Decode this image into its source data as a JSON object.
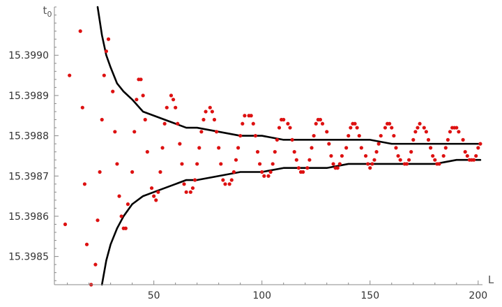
{
  "chart_data": {
    "type": "scatter",
    "title": "",
    "xlabel": "L",
    "ylabel": {
      "base": "t",
      "sub": "0"
    },
    "xlim": [
      4,
      202
    ],
    "ylim": [
      15.39843,
      15.39912
    ],
    "x_axis_at_y": 15.39843,
    "y_axis_at_x": 4,
    "x_ticks": [
      50,
      100,
      150,
      200
    ],
    "x_tick_labels": [
      "50",
      "100",
      "150",
      "200"
    ],
    "x_minor_step": 10,
    "y_ticks": [
      15.3985,
      15.3986,
      15.3987,
      15.3988,
      15.3989,
      15.399
    ],
    "y_tick_labels": [
      "15.3985",
      "15.3986",
      "15.3987",
      "15.3988",
      "15.3989",
      "15.3990"
    ],
    "y_minor_step": 2e-05,
    "grid": false,
    "colors": {
      "points": "#dd1111",
      "curves": "#000000",
      "axes": "#888888"
    },
    "series": [
      {
        "kind": "points",
        "x": [
          9,
          11,
          16,
          17,
          18,
          19,
          21,
          23,
          24,
          25,
          26,
          27,
          28,
          29,
          31,
          32,
          33,
          34,
          35,
          36,
          37,
          38,
          40,
          41,
          42,
          43,
          44,
          45,
          46,
          47,
          49,
          50,
          51,
          52,
          53,
          54,
          55,
          56,
          58,
          59,
          60,
          61,
          62,
          63,
          64,
          65,
          67,
          68,
          69,
          70,
          71,
          72,
          73,
          74,
          76,
          77,
          78,
          79,
          80,
          81,
          82,
          83,
          85,
          86,
          87,
          88,
          89,
          90,
          91,
          92,
          94,
          95,
          96,
          97,
          98,
          99,
          100,
          101,
          103,
          104,
          105,
          106,
          107,
          108,
          109,
          110,
          112,
          113,
          114,
          115,
          116,
          117,
          118,
          119,
          121,
          122,
          123,
          124,
          125,
          126,
          127,
          128,
          130,
          131,
          132,
          133,
          134,
          135,
          136,
          137,
          139,
          140,
          141,
          142,
          143,
          144,
          145,
          146,
          148,
          149,
          150,
          151,
          152,
          153,
          154,
          155,
          157,
          158,
          159,
          160,
          161,
          162,
          163,
          164,
          166,
          167,
          168,
          169,
          170,
          171,
          172,
          173,
          175,
          176,
          177,
          178,
          179,
          180,
          181,
          182,
          184,
          185,
          186,
          187,
          188,
          189,
          190,
          191,
          193,
          194,
          195,
          196,
          197,
          198,
          199,
          200,
          201
        ],
        "y": [
          15.39858,
          15.39895,
          15.39906,
          15.39887,
          15.39868,
          15.39853,
          15.39843,
          15.39848,
          15.39859,
          15.39871,
          15.39884,
          15.39895,
          15.39901,
          15.39904,
          15.39891,
          15.39881,
          15.39873,
          15.39865,
          15.3986,
          15.39857,
          15.39857,
          15.39863,
          15.39871,
          15.39881,
          15.39889,
          15.39894,
          15.39894,
          15.3989,
          15.39884,
          15.39876,
          15.39867,
          15.39865,
          15.39864,
          15.39866,
          15.39871,
          15.39877,
          15.39883,
          15.39887,
          15.3989,
          15.39889,
          15.39887,
          15.39883,
          15.39878,
          15.39873,
          15.39868,
          15.39866,
          15.39866,
          15.39867,
          15.39869,
          15.39873,
          15.39877,
          15.39881,
          15.39884,
          15.39886,
          15.39887,
          15.39886,
          15.39884,
          15.39881,
          15.39877,
          15.39873,
          15.39869,
          15.39868,
          15.39868,
          15.39869,
          15.39871,
          15.39874,
          15.39877,
          15.3988,
          15.39883,
          15.39885,
          15.39885,
          15.39885,
          15.39883,
          15.3988,
          15.39876,
          15.39873,
          15.39871,
          15.3987,
          15.3987,
          15.39871,
          15.39873,
          15.39876,
          15.39879,
          15.39882,
          15.39884,
          15.39884,
          15.39883,
          15.39882,
          15.39879,
          15.39876,
          15.39874,
          15.39872,
          15.39871,
          15.39871,
          15.39872,
          15.39874,
          15.39877,
          15.3988,
          15.39883,
          15.39884,
          15.39884,
          15.39883,
          15.39881,
          15.39878,
          15.39875,
          15.39873,
          15.39872,
          15.39872,
          15.39873,
          15.39875,
          15.39877,
          15.3988,
          15.39882,
          15.39883,
          15.39883,
          15.39882,
          15.3988,
          15.39877,
          15.39875,
          15.39873,
          15.39872,
          15.39873,
          15.39874,
          15.39876,
          15.39878,
          15.3988,
          15.39882,
          15.39883,
          15.39883,
          15.39882,
          15.3988,
          15.39877,
          15.39875,
          15.39874,
          15.39873,
          15.39873,
          15.39874,
          15.39876,
          15.39879,
          15.39881,
          15.39882,
          15.39883,
          15.39882,
          15.39881,
          15.39879,
          15.39877,
          15.39875,
          15.39874,
          15.39873,
          15.39873,
          15.39875,
          15.39877,
          15.39879,
          15.39881,
          15.39882,
          15.39882,
          15.39882,
          15.39881,
          15.39879,
          15.39876,
          15.39875,
          15.39874,
          15.39874,
          15.39874,
          15.39875,
          15.39877,
          15.39878
        ]
      },
      {
        "kind": "curve",
        "x": [
          24,
          26,
          28,
          30,
          33,
          36,
          40,
          45,
          50,
          55,
          60,
          65,
          70,
          80,
          90,
          100,
          110,
          120,
          130,
          140,
          150,
          160,
          170,
          180,
          190,
          201
        ],
        "y": [
          15.39912,
          15.39905,
          15.399,
          15.39897,
          15.39893,
          15.39891,
          15.39889,
          15.39886,
          15.39885,
          15.39884,
          15.39883,
          15.39882,
          15.39882,
          15.39881,
          15.3988,
          15.3988,
          15.39879,
          15.39879,
          15.39879,
          15.39879,
          15.39879,
          15.39878,
          15.39878,
          15.39878,
          15.39878,
          15.39878
        ]
      },
      {
        "kind": "curve",
        "x": [
          26,
          28,
          30,
          33,
          36,
          40,
          45,
          50,
          55,
          60,
          65,
          70,
          80,
          90,
          100,
          110,
          120,
          130,
          140,
          150,
          160,
          170,
          180,
          190,
          201
        ],
        "y": [
          15.39843,
          15.39849,
          15.39853,
          15.39857,
          15.3986,
          15.39863,
          15.39865,
          15.39866,
          15.39867,
          15.39868,
          15.39869,
          15.39869,
          15.3987,
          15.39871,
          15.39871,
          15.39872,
          15.39872,
          15.39872,
          15.39873,
          15.39873,
          15.39873,
          15.39873,
          15.39873,
          15.39874,
          15.39874
        ]
      }
    ]
  }
}
